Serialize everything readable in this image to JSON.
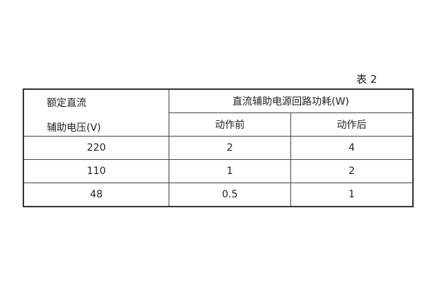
{
  "caption": "表 2",
  "table": {
    "corner_line1": "额定直流",
    "corner_line2": "辅助电压(V)",
    "group_header": "直流辅助电源回路功耗(W)",
    "sub_headers": [
      "动作前",
      "动作后"
    ],
    "rows": [
      [
        "220",
        "2",
        "4"
      ],
      [
        "110",
        "1",
        "2"
      ],
      [
        "48",
        "0.5",
        "1"
      ]
    ]
  }
}
